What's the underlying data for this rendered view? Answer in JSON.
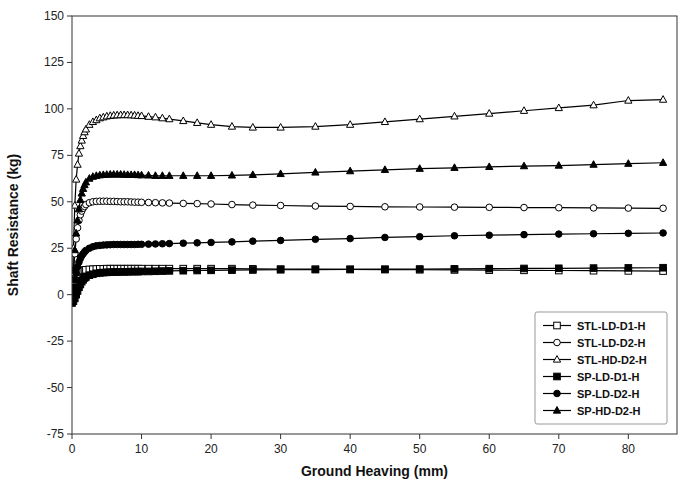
{
  "chart_data": {
    "type": "line",
    "title": "",
    "xlabel": "Ground Heaving (mm)",
    "ylabel": "Shaft Resistance (kg)",
    "xlim": [
      0,
      87
    ],
    "ylim": [
      -75,
      150
    ],
    "xticks": [
      0,
      10,
      20,
      30,
      40,
      50,
      60,
      70,
      80
    ],
    "yticks": [
      -75,
      -50,
      -25,
      0,
      25,
      50,
      75,
      100,
      125,
      150
    ],
    "grid": false,
    "legend": "lower-right",
    "x": [
      0.0,
      0.2,
      0.4,
      0.6,
      0.8,
      1.0,
      1.2,
      1.4,
      1.6,
      1.8,
      2.0,
      2.5,
      3.0,
      3.5,
      4.0,
      4.5,
      5.0,
      5.5,
      6.0,
      6.5,
      7.0,
      7.5,
      8.0,
      8.5,
      9.0,
      9.5,
      10.0,
      11.0,
      12.0,
      13.0,
      14.0,
      16.0,
      18.0,
      20.0,
      23.0,
      26.0,
      30.0,
      35.0,
      40.0,
      45.0,
      50.0,
      55.0,
      60.0,
      65.0,
      70.0,
      75.0,
      80.0,
      85.0
    ],
    "series": [
      {
        "name": "STL-LD-D1-H",
        "color": "black",
        "marker": "open-square",
        "line_style": "solid",
        "values": [
          0.0,
          4.0,
          7.5,
          9.5,
          11.0,
          12.0,
          12.5,
          12.8,
          13.0,
          13.2,
          13.4,
          13.6,
          13.7,
          13.8,
          13.9,
          13.9,
          14.0,
          14.0,
          14.0,
          14.0,
          14.0,
          14.0,
          14.0,
          14.0,
          14.0,
          14.0,
          14.0,
          14.0,
          14.0,
          14.0,
          14.0,
          14.0,
          14.0,
          14.0,
          14.0,
          13.9,
          13.8,
          13.7,
          13.6,
          13.5,
          13.4,
          13.3,
          13.2,
          13.1,
          13.0,
          12.9,
          12.8,
          12.7
        ]
      },
      {
        "name": "STL-LD-D2-H",
        "color": "black",
        "marker": "open-circle",
        "line_style": "solid",
        "values": [
          0.0,
          12.0,
          22.0,
          30.0,
          36.0,
          40.0,
          43.0,
          45.0,
          46.5,
          47.5,
          48.5,
          49.5,
          50.0,
          50.2,
          50.3,
          50.3,
          50.3,
          50.2,
          50.2,
          50.1,
          50.0,
          50.0,
          50.0,
          49.9,
          49.8,
          49.8,
          49.7,
          49.6,
          49.5,
          49.4,
          49.3,
          49.1,
          49.0,
          48.8,
          48.5,
          48.2,
          48.0,
          47.7,
          47.5,
          47.3,
          47.2,
          47.1,
          47.0,
          46.9,
          46.8,
          46.7,
          46.6,
          46.5
        ]
      },
      {
        "name": "STL-HD-D2-H",
        "color": "black",
        "marker": "open-triangle",
        "line_style": "solid",
        "values": [
          0.0,
          25.0,
          48.0,
          62.0,
          70.0,
          76.0,
          80.0,
          83.0,
          85.5,
          87.5,
          89.0,
          91.5,
          93.0,
          94.0,
          95.0,
          95.5,
          96.0,
          96.3,
          96.5,
          96.6,
          96.7,
          96.7,
          96.7,
          96.6,
          96.5,
          96.3,
          96.2,
          95.8,
          95.5,
          95.0,
          94.5,
          93.5,
          92.5,
          91.5,
          90.5,
          90.0,
          90.0,
          90.5,
          91.5,
          93.0,
          94.5,
          96.0,
          97.5,
          99.0,
          100.5,
          102.0,
          104.5,
          105.0
        ]
      },
      {
        "name": "SP-LD-D1-H",
        "color": "black",
        "marker": "square",
        "line_style": "solid",
        "values": [
          -4.5,
          -3.5,
          -2.0,
          0.0,
          2.0,
          4.0,
          5.5,
          7.0,
          8.0,
          9.0,
          9.5,
          10.5,
          11.0,
          11.5,
          11.7,
          11.9,
          12.0,
          12.1,
          12.2,
          12.2,
          12.3,
          12.3,
          12.3,
          12.4,
          12.4,
          12.4,
          12.5,
          12.5,
          12.6,
          12.7,
          12.8,
          12.9,
          13.0,
          13.1,
          13.2,
          13.3,
          13.4,
          13.5,
          13.6,
          13.7,
          13.8,
          13.9,
          14.0,
          14.1,
          14.2,
          14.3,
          14.4,
          14.5
        ]
      },
      {
        "name": "SP-LD-D2-H",
        "color": "black",
        "marker": "circle",
        "line_style": "solid",
        "values": [
          0.0,
          4.0,
          8.0,
          11.5,
          15.0,
          17.5,
          19.5,
          21.0,
          22.0,
          23.0,
          23.8,
          25.0,
          25.8,
          26.3,
          26.5,
          26.7,
          26.8,
          26.9,
          27.0,
          27.0,
          27.0,
          27.0,
          27.0,
          27.0,
          27.0,
          27.1,
          27.1,
          27.2,
          27.3,
          27.4,
          27.5,
          27.7,
          27.9,
          28.1,
          28.4,
          28.8,
          29.2,
          29.8,
          30.2,
          30.8,
          31.2,
          31.7,
          32.0,
          32.3,
          32.6,
          32.8,
          33.0,
          33.2
        ]
      },
      {
        "name": "SP-HD-D2-H",
        "color": "black",
        "marker": "triangle",
        "line_style": "solid",
        "values": [
          0.0,
          13.0,
          24.0,
          33.0,
          40.0,
          46.0,
          51.0,
          54.5,
          57.0,
          59.0,
          60.5,
          62.5,
          63.5,
          64.0,
          64.3,
          64.5,
          64.6,
          64.7,
          64.7,
          64.7,
          64.7,
          64.6,
          64.5,
          64.5,
          64.5,
          64.4,
          64.3,
          64.2,
          64.0,
          64.0,
          64.0,
          64.0,
          64.0,
          64.0,
          64.2,
          64.5,
          65.0,
          65.8,
          66.5,
          67.2,
          67.8,
          68.3,
          68.8,
          69.2,
          69.5,
          70.0,
          70.5,
          71.0
        ]
      }
    ]
  }
}
